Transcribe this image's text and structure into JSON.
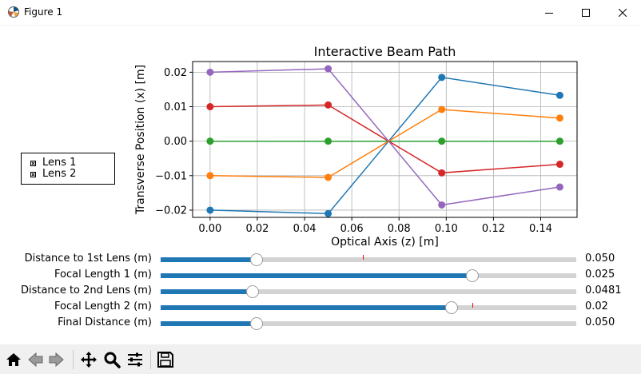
{
  "window": {
    "title": "Figure 1",
    "app_icon": "matplotlib-icon",
    "controls": [
      "minimize-icon",
      "maximize-icon",
      "close-icon"
    ]
  },
  "chart_data": {
    "type": "line",
    "title": "Interactive Beam Path",
    "xlabel": "Optical Axis (z) [m]",
    "ylabel": "Transverse Position (x) [m]",
    "xlim": [
      -0.0074,
      0.1554
    ],
    "ylim": [
      -0.0221,
      0.0231
    ],
    "xticks": [
      0.0,
      0.02,
      0.04,
      0.06,
      0.08,
      0.1,
      0.12,
      0.14
    ],
    "xtick_labels": [
      "0.00",
      "0.02",
      "0.04",
      "0.06",
      "0.08",
      "0.10",
      "0.12",
      "0.14"
    ],
    "yticks": [
      -0.02,
      -0.01,
      0.0,
      0.01,
      0.02
    ],
    "ytick_labels": [
      "−0.02",
      "−0.01",
      "0.00",
      "0.01",
      "0.02"
    ],
    "grid": true,
    "series": [
      {
        "color": "#1f77b4",
        "markers": [
          true,
          true,
          false,
          true,
          true
        ],
        "x": [
          0.0,
          0.05,
          0.0756,
          0.0981,
          0.1481
        ],
        "y": [
          -0.02,
          -0.021,
          0.0,
          0.0185,
          0.0133
        ]
      },
      {
        "color": "#ff7f0e",
        "markers": [
          true,
          true,
          false,
          true,
          true
        ],
        "x": [
          0.0,
          0.05,
          0.0756,
          0.0981,
          0.1481
        ],
        "y": [
          -0.01,
          -0.0105,
          0.0,
          0.0092,
          0.0067
        ]
      },
      {
        "color": "#2ca02c",
        "markers": [
          true,
          true,
          false,
          true,
          true
        ],
        "x": [
          0.0,
          0.05,
          0.0756,
          0.0981,
          0.1481
        ],
        "y": [
          0.0,
          0.0,
          0.0,
          0.0,
          0.0
        ]
      },
      {
        "color": "#d62728",
        "markers": [
          true,
          true,
          false,
          true,
          true
        ],
        "x": [
          0.0,
          0.05,
          0.0756,
          0.0981,
          0.1481
        ],
        "y": [
          0.01,
          0.0105,
          0.0,
          -0.0092,
          -0.0067
        ]
      },
      {
        "color": "#9467bd",
        "markers": [
          true,
          true,
          false,
          true,
          true
        ],
        "x": [
          0.0,
          0.05,
          0.0756,
          0.0981,
          0.1481
        ],
        "y": [
          0.02,
          0.021,
          0.0,
          -0.0185,
          -0.0133
        ]
      }
    ]
  },
  "legend": {
    "items": [
      {
        "label": "Lens 1",
        "checked": false
      },
      {
        "label": "Lens 2",
        "checked": false
      }
    ]
  },
  "sliders": [
    {
      "label": "Distance to 1st Lens (m)",
      "value_text": "0.050",
      "fraction": 0.23,
      "initial_fraction": 0.487
    },
    {
      "label": "Focal Length 1 (m)",
      "value_text": "0.025",
      "fraction": 0.75,
      "initial_fraction": null
    },
    {
      "label": "Distance to 2nd Lens (m)",
      "value_text": "0.0481",
      "fraction": 0.221,
      "initial_fraction": null
    },
    {
      "label": "Focal Length 2 (m)",
      "value_text": "0.02",
      "fraction": 0.7,
      "initial_fraction": 0.75
    },
    {
      "label": "Final Distance (m)",
      "value_text": "0.050",
      "fraction": 0.23,
      "initial_fraction": null
    }
  ],
  "toolbar": {
    "buttons": [
      "home-icon",
      "back-icon",
      "forward-icon",
      "pan-icon",
      "zoom-icon",
      "configure-subplots-icon",
      "save-icon"
    ]
  },
  "colors": {
    "slider_fill": "#1f77b4",
    "slider_track": "#d3d3d3",
    "initial_marker": "#ff0000",
    "toolbar_bg": "#f0f0f0"
  }
}
